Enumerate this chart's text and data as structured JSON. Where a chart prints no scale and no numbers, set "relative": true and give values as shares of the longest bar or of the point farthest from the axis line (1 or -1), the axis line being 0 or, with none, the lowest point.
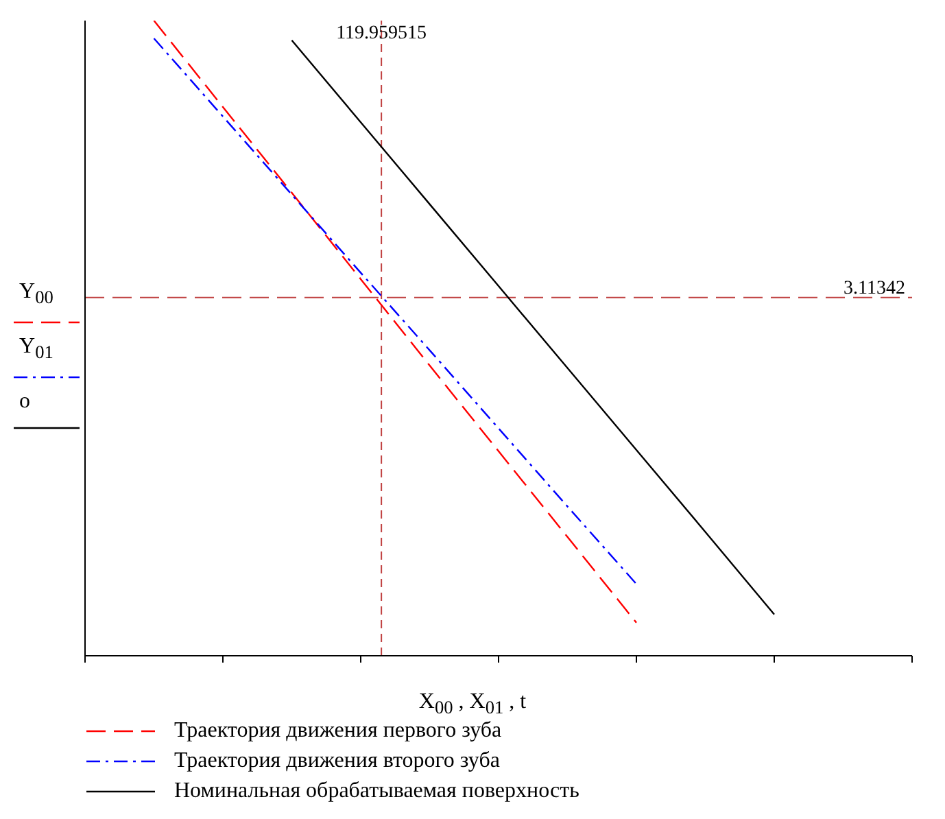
{
  "chart_data": {
    "type": "line",
    "relative": true,
    "xlabel": "X$_{00}$ , X$_{01}$ , t",
    "ylabel": "Y$_{00}$ Y$_{01}$ o",
    "categories": [
      null,
      null,
      null,
      null,
      null,
      null,
      null,
      null,
      null,
      null,
      null,
      null,
      null
    ],
    "series": [
      {
        "name": "Траектория движения первого зуба",
        "color": "#ff0000",
        "line_style": "dashed",
        "values": [
          null,
          1,
          0.864,
          0.729,
          0.593,
          0.457,
          0.322,
          0.187,
          0.052,
          null,
          null,
          null,
          null
        ]
      },
      {
        "name": "Траектория движения второго зуба",
        "color": "#0000ff",
        "line_style": "dashdot",
        "values": [
          null,
          0.972,
          0.849,
          0.726,
          0.603,
          0.481,
          0.358,
          0.235,
          0.113,
          null,
          null,
          null,
          null
        ]
      },
      {
        "name": "Номинальная обрабатываемая поверхность",
        "color": "#000000",
        "line_style": "solid",
        "values": [
          null,
          null,
          null,
          0.969,
          0.84,
          0.711,
          0.582,
          0.453,
          0.324,
          0.195,
          0.065,
          null,
          null
        ]
      }
    ],
    "annotations": [
      "119.959515",
      "3.11342"
    ],
    "ref_lines": [
      {
        "axis": "y",
        "value": 0.564,
        "color": "#c04040",
        "line_style": "dashed"
      }
    ],
    "grid": false,
    "legend": "bottom",
    "marker": "none"
  }
}
